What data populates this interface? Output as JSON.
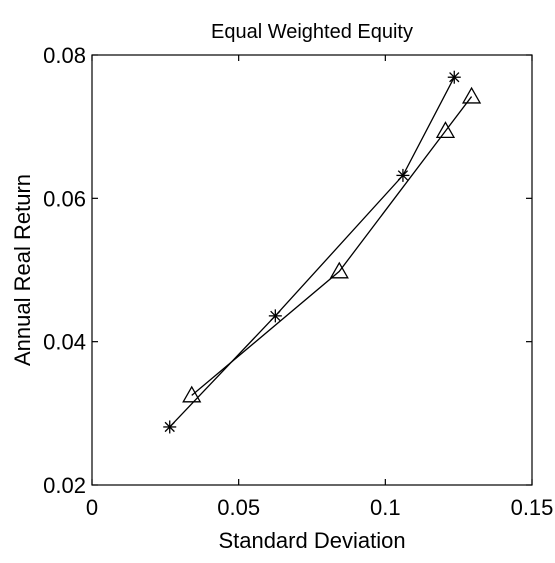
{
  "chart_data": {
    "type": "line",
    "title": "Equal Weighted Equity",
    "xlabel": "Standard Deviation",
    "ylabel": "Annual Real Return",
    "xlim": [
      0,
      0.15
    ],
    "ylim": [
      0.02,
      0.08
    ],
    "xticks": [
      {
        "value": 0,
        "label": "0"
      },
      {
        "value": 0.05,
        "label": "0.05"
      },
      {
        "value": 0.1,
        "label": "0.1"
      },
      {
        "value": 0.15,
        "label": "0.15"
      }
    ],
    "yticks": [
      {
        "value": 0.02,
        "label": "0.02"
      },
      {
        "value": 0.04,
        "label": "0.04"
      },
      {
        "value": 0.06,
        "label": "0.06"
      },
      {
        "value": 0.08,
        "label": "0.08"
      }
    ],
    "grid": false,
    "series": [
      {
        "marker": "asterisk",
        "x": [
          0.0265,
          0.0625,
          0.106,
          0.1235
        ],
        "y": [
          0.0281,
          0.0436,
          0.0632,
          0.0769
        ]
      },
      {
        "marker": "triangle",
        "x": [
          0.034,
          0.0843,
          0.1205,
          0.1294
        ],
        "y": [
          0.0325,
          0.0498,
          0.0694,
          0.0742
        ]
      }
    ]
  }
}
